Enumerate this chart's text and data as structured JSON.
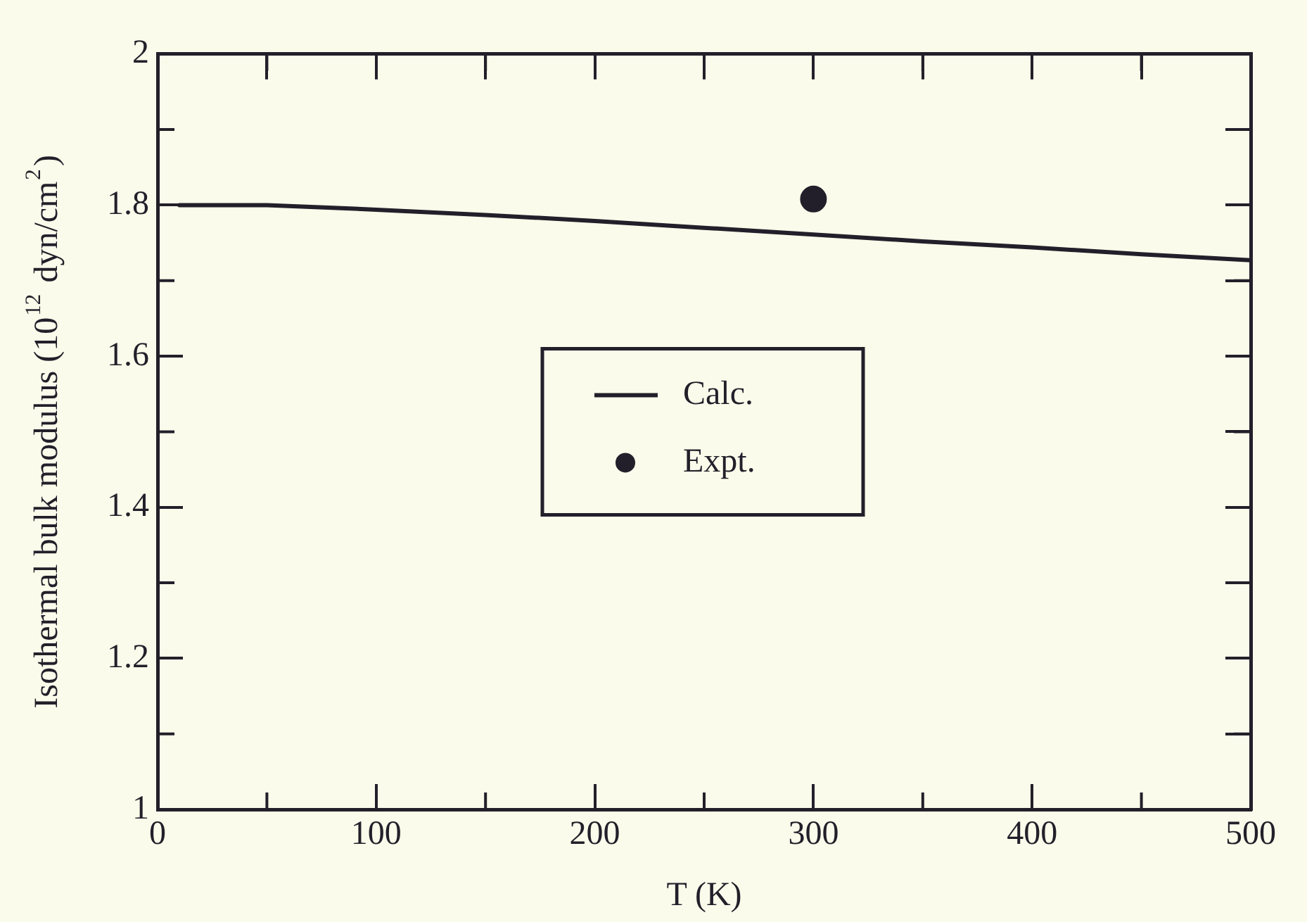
{
  "chart_data": {
    "type": "line",
    "xlabel": "T (K)",
    "ylabel": "Isothermal bulk modulus (10$^{12}$ dyn/cm$^{2}$)",
    "series": [
      {
        "name": "Calc.",
        "type": "line",
        "color": "#231f2a",
        "marker": "none",
        "line_style": "solid",
        "x": [
          10,
          50,
          100,
          150,
          200,
          250,
          300,
          350,
          400,
          450,
          500
        ],
        "values": [
          1.8,
          1.8,
          1.794,
          1.787,
          1.779,
          1.77,
          1.761,
          1.752,
          1.744,
          1.735,
          1.727
        ]
      },
      {
        "name": "Expt.",
        "type": "scatter",
        "color": "#231f2a",
        "marker": "circle",
        "x": [
          300
        ],
        "values": [
          1.808
        ]
      }
    ],
    "xlim": [
      0,
      500
    ],
    "ylim": [
      1,
      2
    ],
    "xticks": [
      0,
      {
        "value": 50,
        "label": null
      },
      100,
      {
        "value": 150,
        "label": null
      },
      200,
      {
        "value": 250,
        "label": null
      },
      300,
      {
        "value": 350,
        "label": null
      },
      400,
      {
        "value": 450,
        "label": null
      },
      500
    ],
    "yticks": [
      1,
      {
        "value": 1.1,
        "label": null
      },
      1.2,
      {
        "value": 1.3,
        "label": null
      },
      1.4,
      {
        "value": 1.5,
        "label": null
      },
      1.6,
      {
        "value": 1.7,
        "label": null
      },
      1.8,
      {
        "value": 1.9,
        "label": null
      },
      2
    ],
    "grid": false,
    "legend": "center"
  }
}
